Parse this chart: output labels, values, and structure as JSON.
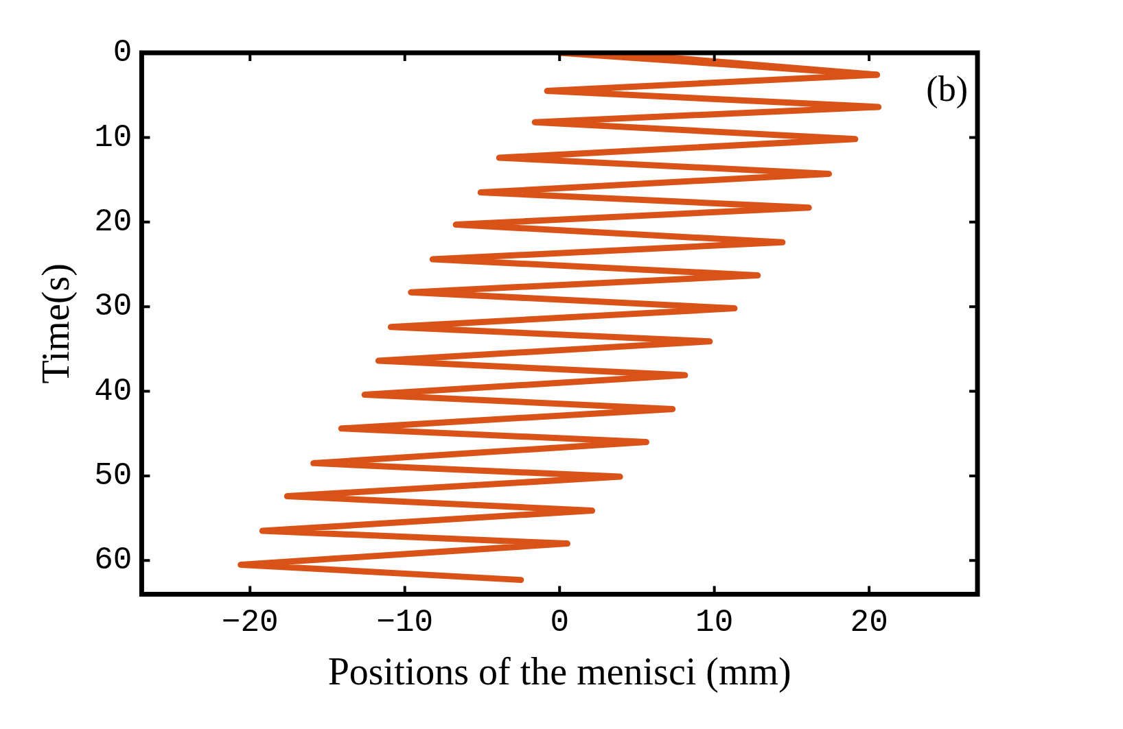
{
  "chart_data": {
    "type": "line",
    "xlabel": "Positions of the menisci (mm)",
    "ylabel": "Time(s)",
    "annotations": [
      "(b)"
    ],
    "xlim": [
      -27,
      27
    ],
    "xticks": [
      {
        "value": -20,
        "label": "−20"
      },
      {
        "value": -10,
        "label": "−10"
      },
      0,
      10,
      20
    ],
    "ylim": [
      64,
      0
    ],
    "yticks": [
      0,
      10,
      20,
      30,
      40,
      50,
      60
    ],
    "grid": false,
    "legend": false,
    "marker": "none",
    "line_style": "solid",
    "series": [
      {
        "color": "#d95319",
        "x": [
          0,
          20.5,
          -0.8,
          20.6,
          -1.6,
          19.1,
          -3.9,
          17.4,
          -5.1,
          16.1,
          -6.7,
          14.4,
          -8.2,
          12.8,
          -9.6,
          11.3,
          -10.9,
          9.7,
          -11.7,
          8.1,
          -12.6,
          7.3,
          -14.1,
          5.6,
          -15.9,
          3.9,
          -17.6,
          2.1,
          -19.2,
          0.5,
          -20.6,
          -2.5
        ],
        "values": [
          0,
          2.6,
          4.5,
          6.4,
          8.2,
          10.2,
          12.4,
          14.3,
          16.5,
          18.3,
          20.3,
          22.4,
          24.4,
          26.3,
          28.3,
          30.2,
          32.4,
          34.1,
          36.4,
          38.1,
          40.4,
          42.1,
          44.4,
          46,
          48.5,
          50.1,
          52.4,
          54.1,
          56.5,
          58,
          60.5,
          62.3
        ]
      },
      {
        "color": "#d95319",
        "x": [
          3.3,
          20.5
        ],
        "values": [
          0,
          2.6
        ]
      }
    ]
  }
}
